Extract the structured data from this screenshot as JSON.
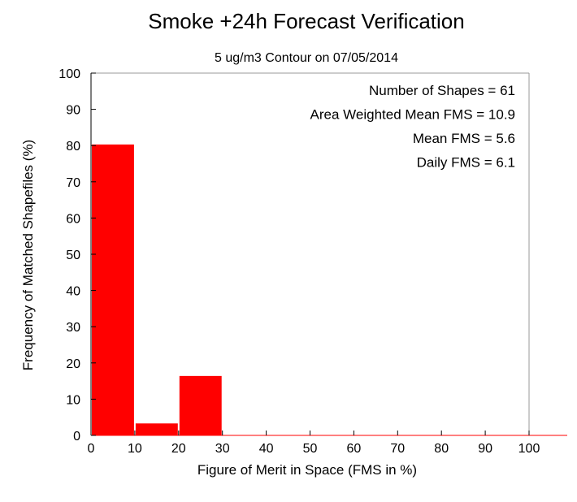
{
  "chart_data": {
    "type": "bar",
    "title": "Smoke +24h Forecast Verification",
    "subtitle": "5 ug/m3 Contour on 07/05/2014",
    "xlabel": "Figure of Merit in Space (FMS in %)",
    "ylabel": "Frequency of Matched Shapefiles (%)",
    "xlim": [
      0,
      100
    ],
    "ylim": [
      0,
      100
    ],
    "x_ticks": [
      0,
      10,
      20,
      30,
      40,
      50,
      60,
      70,
      80,
      90,
      100
    ],
    "y_ticks": [
      0,
      10,
      20,
      30,
      40,
      50,
      60,
      70,
      80,
      90,
      100
    ],
    "bins": [
      {
        "x0": 0,
        "x1": 10,
        "value": 80.3
      },
      {
        "x0": 10,
        "x1": 20,
        "value": 3.3
      },
      {
        "x0": 20,
        "x1": 30,
        "value": 16.4
      },
      {
        "x0": 30,
        "x1": 40,
        "value": 0
      },
      {
        "x0": 40,
        "x1": 50,
        "value": 0
      },
      {
        "x0": 50,
        "x1": 60,
        "value": 0
      },
      {
        "x0": 60,
        "x1": 70,
        "value": 0
      },
      {
        "x0": 70,
        "x1": 80,
        "value": 0
      },
      {
        "x0": 80,
        "x1": 90,
        "value": 0
      },
      {
        "x0": 90,
        "x1": 100,
        "value": 0
      }
    ],
    "bar_color": "#ff0000",
    "grid": false,
    "annotations": [
      "Number of Shapes = 61",
      "Area Weighted Mean FMS = 10.9",
      "Mean FMS = 5.6",
      "Daily FMS = 6.1"
    ]
  }
}
